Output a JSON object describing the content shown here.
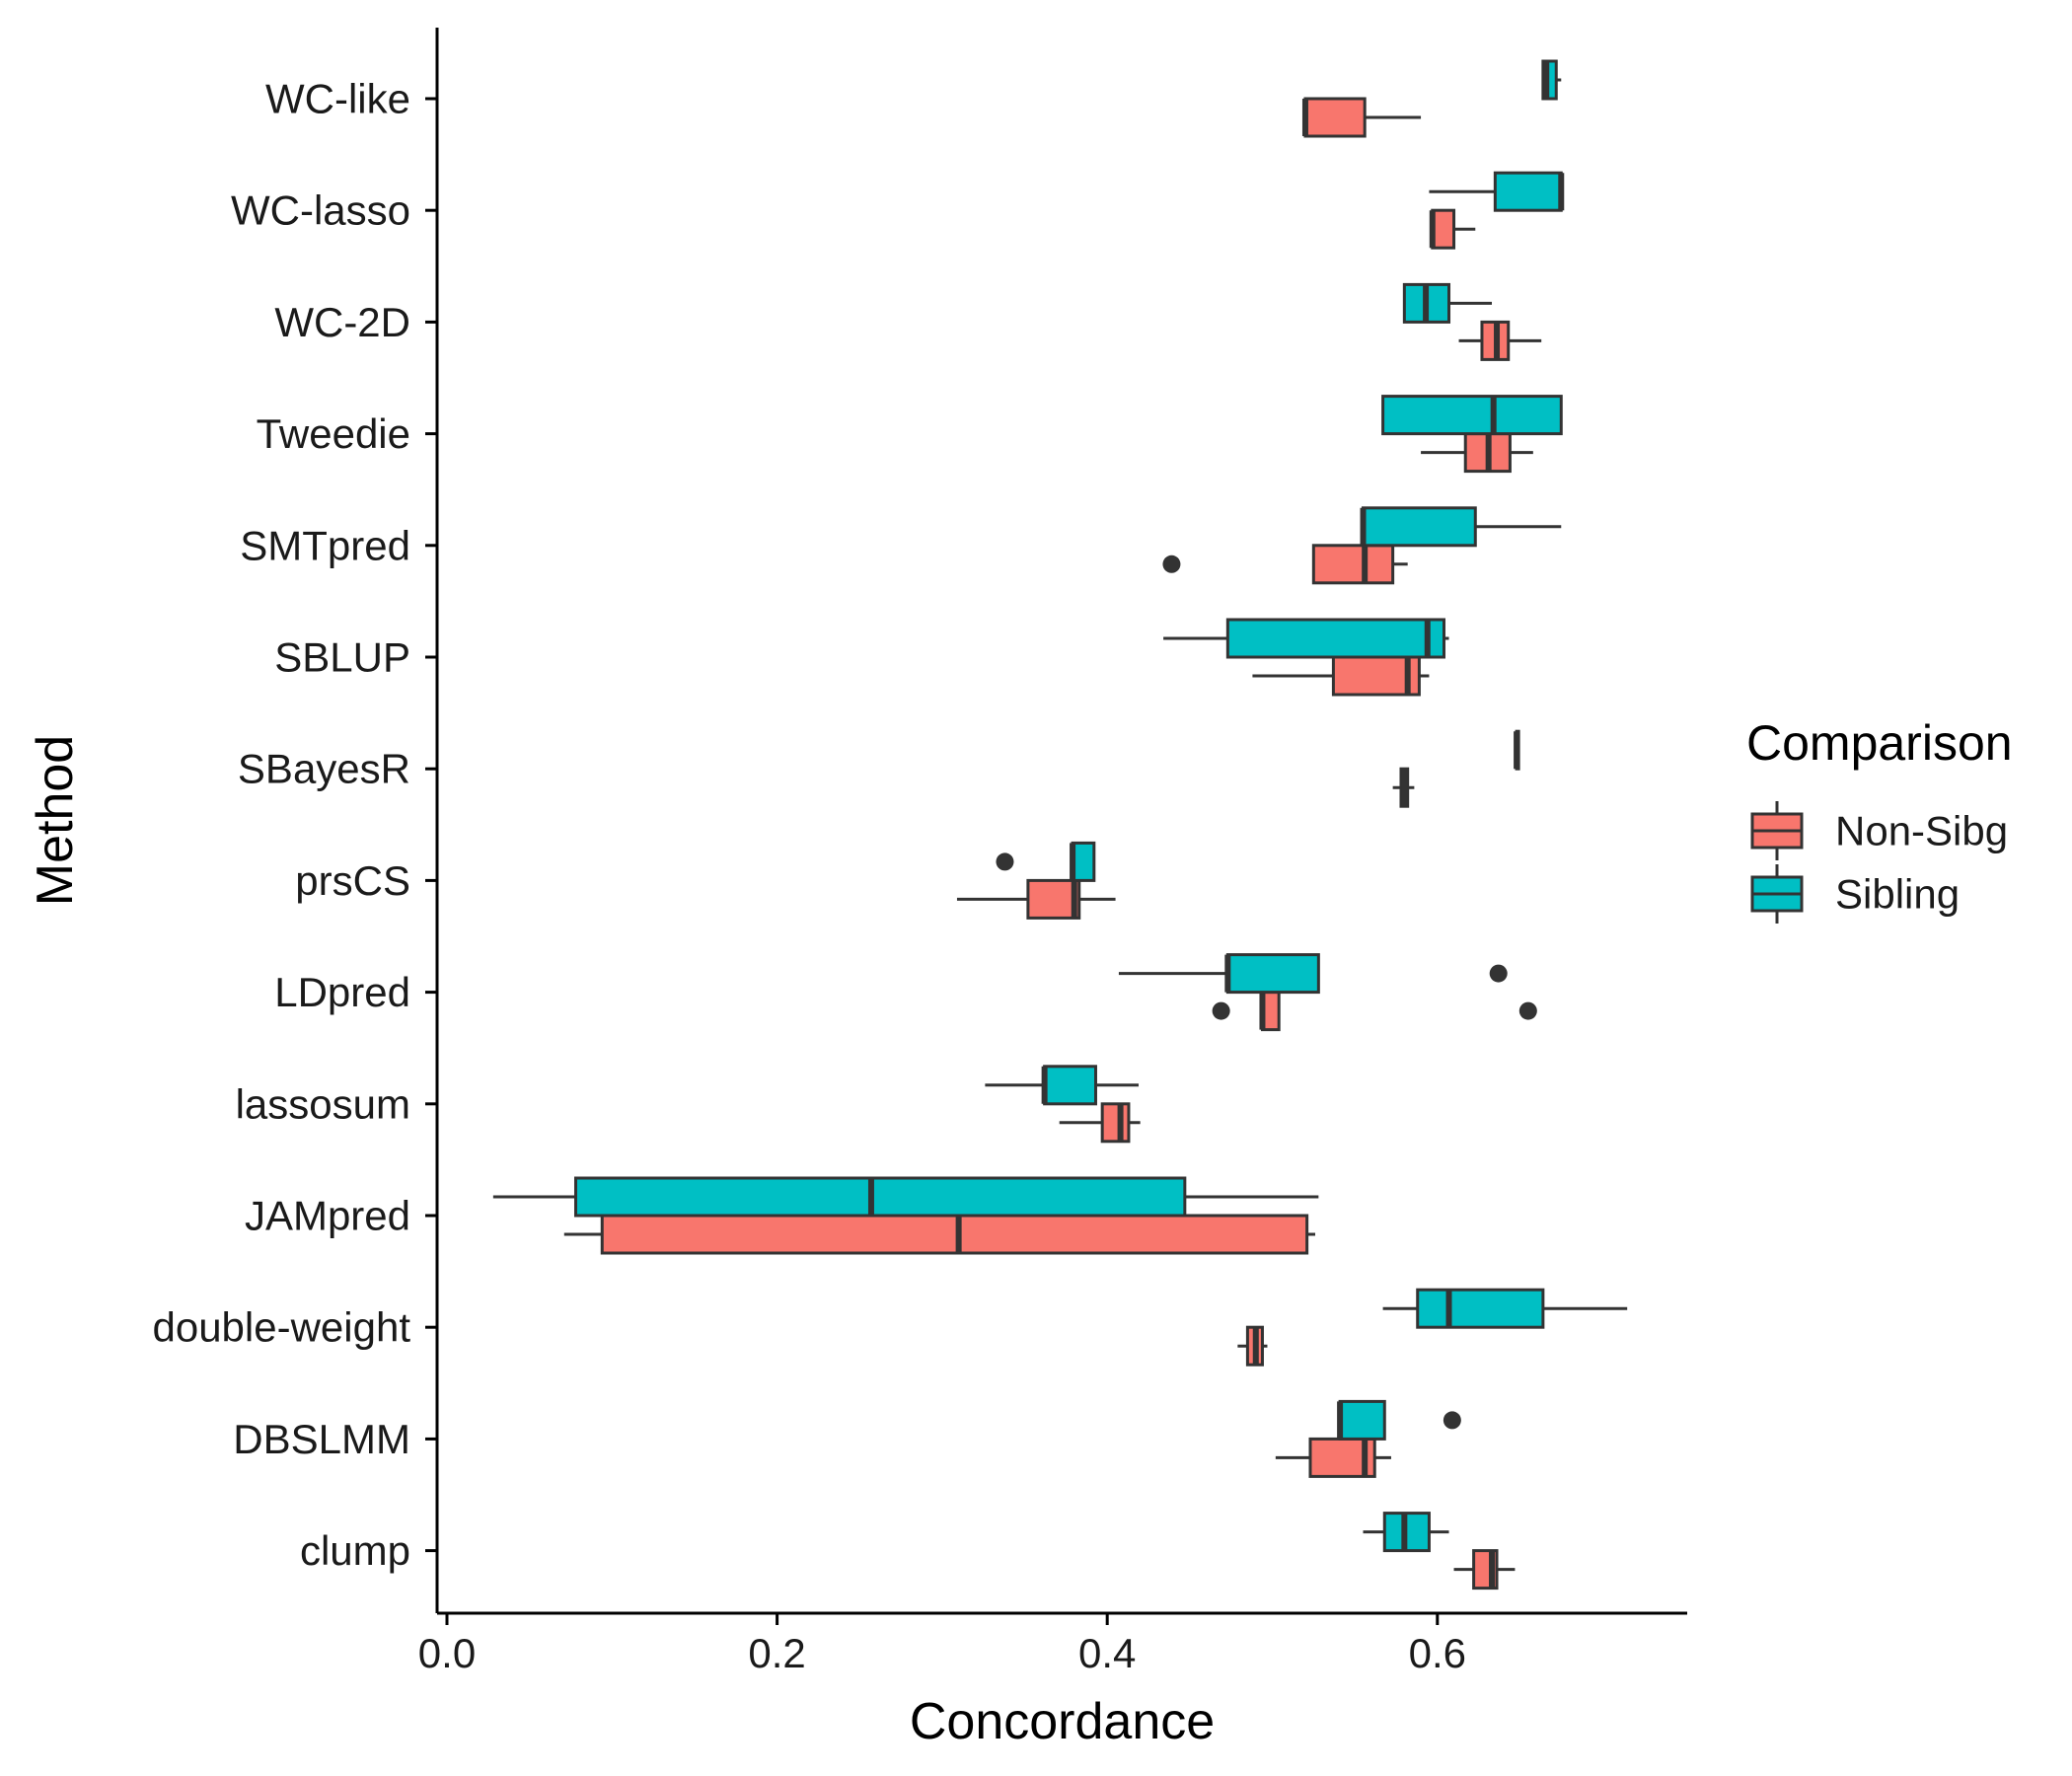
{
  "chart_data": {
    "type": "boxplot",
    "orientation": "horizontal",
    "xlabel": "Concordance",
    "ylabel": "Method",
    "xlim": [
      0.0,
      0.75
    ],
    "xticks": [
      0.0,
      0.2,
      0.4,
      0.6
    ],
    "xtick_labels": [
      "0.0",
      "0.2",
      "0.4",
      "0.6"
    ],
    "categories": [
      "WC-like",
      "WC-lasso",
      "WC-2D",
      "Tweedie",
      "SMTpred",
      "SBLUP",
      "SBayesR",
      "prsCS",
      "LDpred",
      "lassosum",
      "JAMpred",
      "double-weight",
      "DBSLMM",
      "clump"
    ],
    "grid": false,
    "legend": {
      "title": "Comparison",
      "position": "right",
      "entries": [
        {
          "name": "Non-Sibg",
          "color": "#F8766D"
        },
        {
          "name": "Sibling",
          "color": "#00BFC4"
        }
      ]
    },
    "series": [
      {
        "name": "Non-Sibg",
        "color": "#F8766D",
        "boxes": [
          {
            "category": "WC-like",
            "min": 0.52,
            "q1": 0.52,
            "median": 0.52,
            "q3": 0.556,
            "max": 0.59,
            "outliers": []
          },
          {
            "category": "WC-lasso",
            "min": 0.597,
            "q1": 0.597,
            "median": 0.597,
            "q3": 0.61,
            "max": 0.623,
            "outliers": []
          },
          {
            "category": "WC-2D",
            "min": 0.613,
            "q1": 0.627,
            "median": 0.636,
            "q3": 0.643,
            "max": 0.663,
            "outliers": []
          },
          {
            "category": "Tweedie",
            "min": 0.59,
            "q1": 0.617,
            "median": 0.631,
            "q3": 0.644,
            "max": 0.658,
            "outliers": []
          },
          {
            "category": "SMTpred",
            "min": 0.525,
            "q1": 0.525,
            "median": 0.556,
            "q3": 0.573,
            "max": 0.582,
            "outliers": [
              0.439
            ]
          },
          {
            "category": "SBLUP",
            "min": 0.488,
            "q1": 0.537,
            "median": 0.582,
            "q3": 0.589,
            "max": 0.595,
            "outliers": []
          },
          {
            "category": "SBayesR",
            "min": 0.573,
            "q1": 0.578,
            "median": 0.58,
            "q3": 0.582,
            "max": 0.586,
            "outliers": []
          },
          {
            "category": "prsCS",
            "min": 0.309,
            "q1": 0.352,
            "median": 0.38,
            "q3": 0.383,
            "max": 0.405,
            "outliers": []
          },
          {
            "category": "LDpred",
            "min": 0.494,
            "q1": 0.494,
            "median": 0.494,
            "q3": 0.504,
            "max": 0.504,
            "outliers": [
              0.469,
              0.655
            ]
          },
          {
            "category": "lassosum",
            "min": 0.371,
            "q1": 0.397,
            "median": 0.408,
            "q3": 0.413,
            "max": 0.42,
            "outliers": []
          },
          {
            "category": "JAMpred",
            "min": 0.071,
            "q1": 0.094,
            "median": 0.31,
            "q3": 0.521,
            "max": 0.526,
            "outliers": []
          },
          {
            "category": "double-weight",
            "min": 0.479,
            "q1": 0.485,
            "median": 0.49,
            "q3": 0.494,
            "max": 0.497,
            "outliers": []
          },
          {
            "category": "DBSLMM",
            "min": 0.502,
            "q1": 0.523,
            "median": 0.556,
            "q3": 0.562,
            "max": 0.572,
            "outliers": []
          },
          {
            "category": "clump",
            "min": 0.61,
            "q1": 0.622,
            "median": 0.633,
            "q3": 0.636,
            "max": 0.647,
            "outliers": []
          }
        ]
      },
      {
        "name": "Sibling",
        "color": "#00BFC4",
        "boxes": [
          {
            "category": "WC-like",
            "min": 0.664,
            "q1": 0.664,
            "median": 0.666,
            "q3": 0.672,
            "max": 0.675,
            "outliers": []
          },
          {
            "category": "WC-lasso",
            "min": 0.595,
            "q1": 0.635,
            "median": 0.675,
            "q3": 0.675,
            "max": 0.675,
            "outliers": []
          },
          {
            "category": "WC-2D",
            "min": 0.58,
            "q1": 0.58,
            "median": 0.593,
            "q3": 0.607,
            "max": 0.633,
            "outliers": []
          },
          {
            "category": "Tweedie",
            "min": 0.567,
            "q1": 0.567,
            "median": 0.634,
            "q3": 0.675,
            "max": 0.675,
            "outliers": []
          },
          {
            "category": "SMTpred",
            "min": 0.555,
            "q1": 0.555,
            "median": 0.555,
            "q3": 0.623,
            "max": 0.675,
            "outliers": []
          },
          {
            "category": "SBLUP",
            "min": 0.434,
            "q1": 0.473,
            "median": 0.594,
            "q3": 0.604,
            "max": 0.607,
            "outliers": []
          },
          {
            "category": "SBayesR",
            "min": 0.648,
            "q1": 0.648,
            "median": 0.648,
            "q3": 0.648,
            "max": 0.648,
            "outliers": []
          },
          {
            "category": "prsCS",
            "min": 0.379,
            "q1": 0.379,
            "median": 0.379,
            "q3": 0.392,
            "max": 0.392,
            "outliers": [
              0.338
            ]
          },
          {
            "category": "LDpred",
            "min": 0.407,
            "q1": 0.473,
            "median": 0.473,
            "q3": 0.528,
            "max": 0.528,
            "outliers": [
              0.637
            ]
          },
          {
            "category": "lassosum",
            "min": 0.326,
            "q1": 0.362,
            "median": 0.362,
            "q3": 0.393,
            "max": 0.419,
            "outliers": []
          },
          {
            "category": "JAMpred",
            "min": 0.028,
            "q1": 0.078,
            "median": 0.257,
            "q3": 0.447,
            "max": 0.528,
            "outliers": []
          },
          {
            "category": "double-weight",
            "min": 0.567,
            "q1": 0.588,
            "median": 0.607,
            "q3": 0.664,
            "max": 0.715,
            "outliers": []
          },
          {
            "category": "DBSLMM",
            "min": 0.541,
            "q1": 0.541,
            "median": 0.541,
            "q3": 0.568,
            "max": 0.568,
            "outliers": [
              0.609
            ]
          },
          {
            "category": "clump",
            "min": 0.555,
            "q1": 0.568,
            "median": 0.58,
            "q3": 0.595,
            "max": 0.607,
            "outliers": []
          }
        ]
      }
    ]
  }
}
